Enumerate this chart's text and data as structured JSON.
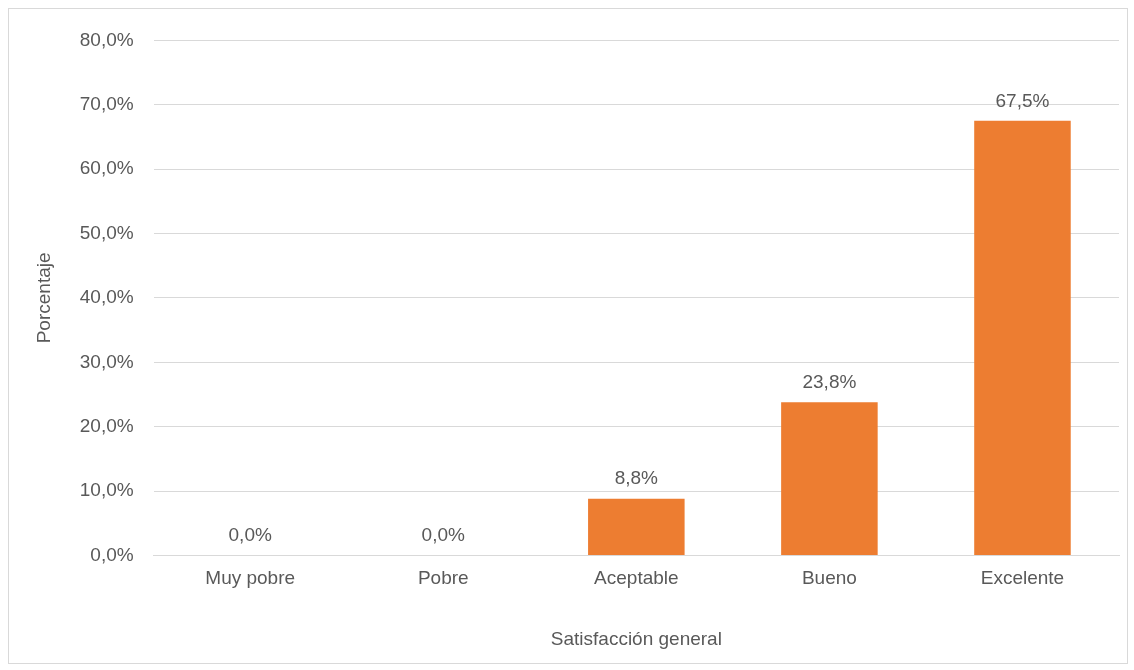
{
  "chart_data": {
    "type": "bar",
    "xlabel": "Satisfacción general",
    "ylabel": "Porcentaje",
    "categories": [
      "Muy pobre",
      "Pobre",
      "Aceptable",
      "Bueno",
      "Excelente"
    ],
    "values": [
      0,
      0,
      8.8,
      23.8,
      67.5
    ],
    "color": "#ed7d31",
    "value_labels": [
      "0,0%",
      "0,0%",
      "8,8%",
      "23,8%",
      "67,5%"
    ],
    "ylim": [
      0,
      80
    ],
    "yticks": [
      {
        "value": 0,
        "label": "0,0%"
      },
      {
        "value": 10,
        "label": "10,0%"
      },
      {
        "value": 20,
        "label": "20,0%"
      },
      {
        "value": 30,
        "label": "30,0%"
      },
      {
        "value": 40,
        "label": "40,0%"
      },
      {
        "value": 50,
        "label": "50,0%"
      },
      {
        "value": 60,
        "label": "60,0%"
      },
      {
        "value": 70,
        "label": "70,0%"
      },
      {
        "value": 80,
        "label": "80,0%"
      }
    ],
    "grid": "y",
    "legend": false
  }
}
